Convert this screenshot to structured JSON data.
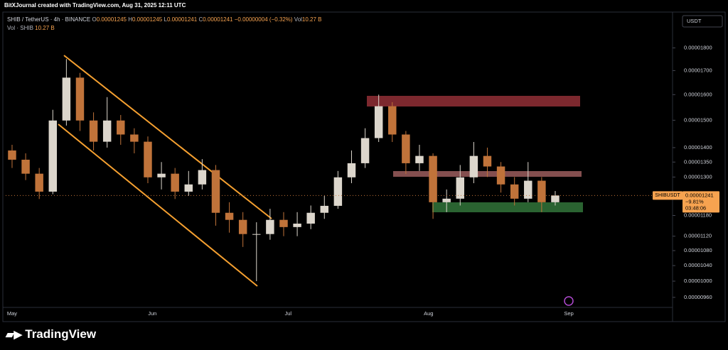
{
  "header": {
    "credit": "BitXJournal created with TradingView.com, Aug 31, 2025 12:11 UTC",
    "symbol": "SHIB / TetherUS · 4h · BINANCE",
    "ohlc": [
      {
        "label": "O",
        "value": "0.00001245"
      },
      {
        "label": "H",
        "value": "0.00001245"
      },
      {
        "label": "L",
        "value": "0.00001241"
      },
      {
        "label": "C",
        "value": "0.00001241"
      }
    ],
    "change": "−0.00000004 (−0.32%)",
    "volume_label": "Vol",
    "volume_value": "10.27 B",
    "volume_pane_label": "Vol · SHIB",
    "volume_pane_value": "10.27 B"
  },
  "currency": "USDT",
  "price_tag": {
    "symbol": "SHIBUSDT",
    "price": "0.00001241",
    "change": "−9.81%",
    "countdown": "03:48:06"
  },
  "footer": {
    "brand": "TradingView"
  },
  "chart_data": {
    "type": "candlestick",
    "categories": [
      null,
      null,
      null,
      null,
      null,
      null,
      null,
      null,
      null,
      null,
      null,
      null,
      null,
      null,
      null,
      null,
      null,
      null,
      null,
      null,
      null,
      null,
      null,
      null,
      null,
      null,
      null,
      null,
      null,
      null,
      null,
      null,
      null,
      null,
      null,
      null,
      null,
      null,
      null,
      null,
      null
    ],
    "open": [
      1.39e-05,
      1.358e-05,
      1.311e-05,
      1.253e-05,
      1.499e-05,
      1.67e-05,
      1.499e-05,
      1.421e-05,
      1.499e-05,
      1.447e-05,
      1.421e-05,
      1.299e-05,
      1.311e-05,
      1.253e-05,
      1.276e-05,
      1.323e-05,
      1.188e-05,
      1.167e-05,
      1.126e-05,
      1.126e-05,
      1.167e-05,
      1.146e-05,
      1.156e-05,
      1.188e-05,
      1.209e-05,
      1.299e-05,
      1.346e-05,
      1.434e-05,
      1.554e-05,
      1.447e-05,
      1.346e-05,
      1.371e-05,
      1.22e-05,
      1.231e-05,
      1.299e-05,
      1.371e-05,
      1.335e-05,
      1.276e-05,
      1.231e-05,
      1.288e-05,
      1.22e-05
    ],
    "high": [
      1.41e-05,
      1.38e-05,
      1.33e-05,
      1.54e-05,
      1.75e-05,
      1.69e-05,
      1.53e-05,
      1.59e-05,
      1.52e-05,
      1.47e-05,
      1.44e-05,
      1.35e-05,
      1.33e-05,
      1.32e-05,
      1.36e-05,
      1.34e-05,
      1.22e-05,
      1.19e-05,
      1.16e-05,
      1.2e-05,
      1.19e-05,
      1.19e-05,
      1.21e-05,
      1.24e-05,
      1.32e-05,
      1.39e-05,
      1.47e-05,
      1.6e-05,
      1.57e-05,
      1.46e-05,
      1.41e-05,
      1.38e-05,
      1.26e-05,
      1.34e-05,
      1.42e-05,
      1.4e-05,
      1.35e-05,
      1.3e-05,
      1.35e-05,
      1.3e-05,
      1.255e-05
    ],
    "low": [
      1.33e-05,
      1.29e-05,
      1.23e-05,
      1.245e-05,
      1.48e-05,
      1.46e-05,
      1.39e-05,
      1.4e-05,
      1.41e-05,
      1.38e-05,
      1.28e-05,
      1.26e-05,
      1.23e-05,
      1.24e-05,
      1.26e-05,
      1.15e-05,
      1.13e-05,
      1.09e-05,
      1e-05,
      1.11e-05,
      1.12e-05,
      1.12e-05,
      1.14e-05,
      1.17e-05,
      1.2e-05,
      1.28e-05,
      1.33e-05,
      1.42e-05,
      1.42e-05,
      1.31e-05,
      1.32e-05,
      1.17e-05,
      1.19e-05,
      1.21e-05,
      1.28e-05,
      1.3e-05,
      1.25e-05,
      1.21e-05,
      1.22e-05,
      1.19e-05,
      1.21e-05
    ],
    "close": [
      1.358e-05,
      1.311e-05,
      1.253e-05,
      1.499e-05,
      1.67e-05,
      1.499e-05,
      1.421e-05,
      1.499e-05,
      1.447e-05,
      1.421e-05,
      1.299e-05,
      1.311e-05,
      1.253e-05,
      1.276e-05,
      1.323e-05,
      1.188e-05,
      1.167e-05,
      1.126e-05,
      1.126e-05,
      1.167e-05,
      1.146e-05,
      1.156e-05,
      1.188e-05,
      1.209e-05,
      1.299e-05,
      1.346e-05,
      1.434e-05,
      1.554e-05,
      1.447e-05,
      1.346e-05,
      1.371e-05,
      1.22e-05,
      1.231e-05,
      1.299e-05,
      1.371e-05,
      1.335e-05,
      1.276e-05,
      1.231e-05,
      1.288e-05,
      1.22e-05,
      1.241e-05
    ],
    "up_color": "#dcd6cc",
    "down_color": "#c0733a",
    "xlim": [
      -0.47,
      48.64
    ],
    "xticks": [
      {
        "value": 0,
        "label": "May"
      },
      {
        "value": 10.33,
        "label": "Jun"
      },
      {
        "value": 20.33,
        "label": "Jul"
      },
      {
        "value": 30.67,
        "label": "Aug"
      },
      {
        "value": 41,
        "label": "Sep"
      }
    ],
    "ylim": [
      9.36e-06,
      1.97e-05
    ],
    "log_scale": true,
    "grid": false,
    "yticks": [
      {
        "value": 1.8e-05,
        "label": "0.00001800"
      },
      {
        "value": 1.7e-05,
        "label": "0.00001700"
      },
      {
        "value": 1.6e-05,
        "label": "0.00001600"
      },
      {
        "value": 1.5e-05,
        "label": "0.00001500"
      },
      {
        "value": 1.4e-05,
        "label": "0.00001400"
      },
      {
        "value": 1.35e-05,
        "label": "0.00001350"
      },
      {
        "value": 1.3e-05,
        "label": "0.00001300"
      },
      {
        "value": 1.18e-05,
        "label": "0.00001180"
      },
      {
        "value": 1.12e-05,
        "label": "0.00001120"
      },
      {
        "value": 1.08e-05,
        "label": "0.00001080"
      },
      {
        "value": 1.04e-05,
        "label": "0.00001040"
      },
      {
        "value": 1e-05,
        "label": "0.00001000"
      },
      {
        "value": 9.6e-06,
        "label": "0.00000960"
      }
    ]
  }
}
